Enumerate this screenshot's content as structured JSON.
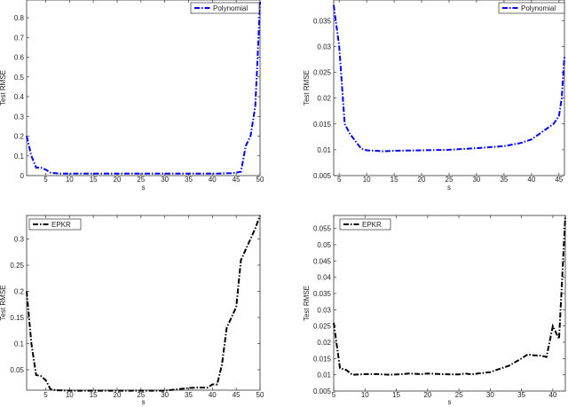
{
  "chart_data": [
    {
      "type": "line",
      "xlabel": "s",
      "ylabel": "Test RMSE",
      "xlim": [
        1,
        50
      ],
      "ylim": [
        0,
        0.89
      ],
      "xticks": [
        5,
        10,
        15,
        20,
        25,
        30,
        35,
        40,
        45,
        50
      ],
      "yticks": [
        0,
        0.1,
        0.2,
        0.3,
        0.4,
        0.5,
        0.6,
        0.7,
        0.8
      ],
      "legend": "top-right",
      "grid": false,
      "series": [
        {
          "name": "Polynomial",
          "color": "#0000ff",
          "x": [
            1,
            2,
            3,
            4,
            5,
            6,
            8,
            10,
            15,
            20,
            25,
            30,
            35,
            40,
            44,
            45,
            46,
            47,
            48,
            49,
            49.5,
            50
          ],
          "y": [
            0.2,
            0.1,
            0.04,
            0.04,
            0.03,
            0.015,
            0.01,
            0.01,
            0.01,
            0.01,
            0.01,
            0.01,
            0.01,
            0.01,
            0.012,
            0.015,
            0.02,
            0.15,
            0.2,
            0.35,
            0.6,
            0.88
          ]
        }
      ]
    },
    {
      "type": "line",
      "xlabel": "s",
      "ylabel": "Test RMSE",
      "xlim": [
        4,
        46
      ],
      "ylim": [
        0.005,
        0.039
      ],
      "xticks": [
        5,
        10,
        15,
        20,
        25,
        30,
        35,
        40,
        45
      ],
      "yticks": [
        0.005,
        0.01,
        0.015,
        0.02,
        0.025,
        0.03,
        0.035
      ],
      "legend": "top-right",
      "grid": false,
      "series": [
        {
          "name": "Polynomial",
          "color": "#0000ff",
          "x": [
            4,
            5,
            6,
            7,
            9,
            10,
            13,
            15,
            20,
            25,
            30,
            35,
            38,
            40,
            42,
            44,
            45,
            45.5,
            46
          ],
          "y": [
            0.038,
            0.03,
            0.015,
            0.013,
            0.0102,
            0.0099,
            0.0097,
            0.0098,
            0.0099,
            0.01,
            0.0103,
            0.0107,
            0.0113,
            0.012,
            0.0135,
            0.015,
            0.0165,
            0.02,
            0.028
          ]
        }
      ]
    },
    {
      "type": "line",
      "xlabel": "s",
      "ylabel": "Test RMSE",
      "xlim": [
        1,
        50
      ],
      "ylim": [
        0.011,
        0.345
      ],
      "xticks": [
        5,
        10,
        15,
        20,
        25,
        30,
        35,
        40,
        45,
        50
      ],
      "yticks": [
        0.05,
        0.1,
        0.15,
        0.2,
        0.25,
        0.3
      ],
      "legend": "top-left",
      "grid": false,
      "series": [
        {
          "name": "EPKR",
          "color": "#000000",
          "x": [
            1,
            2,
            3,
            4,
            5,
            6,
            7,
            10,
            15,
            20,
            25,
            30,
            32,
            35,
            37,
            39,
            40,
            41,
            42,
            43,
            44,
            45,
            46,
            47,
            48,
            49,
            50
          ],
          "y": [
            0.2,
            0.1,
            0.04,
            0.038,
            0.03,
            0.013,
            0.011,
            0.01,
            0.01,
            0.01,
            0.01,
            0.01,
            0.012,
            0.015,
            0.016,
            0.016,
            0.022,
            0.022,
            0.06,
            0.13,
            0.15,
            0.17,
            0.26,
            0.28,
            0.3,
            0.32,
            0.345
          ]
        }
      ]
    },
    {
      "type": "line",
      "xlabel": "s",
      "ylabel": "Test RMSE",
      "xlim": [
        5,
        42
      ],
      "ylim": [
        0.005,
        0.059
      ],
      "xticks": [
        5,
        10,
        15,
        20,
        25,
        30,
        35,
        40
      ],
      "yticks": [
        0.005,
        0.01,
        0.015,
        0.02,
        0.025,
        0.03,
        0.035,
        0.04,
        0.045,
        0.05,
        0.055
      ],
      "legend": "top-left",
      "grid": false,
      "series": [
        {
          "name": "EPKR",
          "color": "#000000",
          "x": [
            5,
            6,
            7,
            8,
            10,
            12,
            14,
            16,
            17,
            19,
            20,
            22,
            24,
            25,
            26,
            27,
            28,
            30,
            31,
            33,
            35,
            36,
            37,
            38,
            39,
            40,
            40.5,
            41,
            41.5,
            42
          ],
          "y": [
            0.026,
            0.012,
            0.0115,
            0.01,
            0.0102,
            0.0102,
            0.01,
            0.0102,
            0.0104,
            0.0102,
            0.0104,
            0.0102,
            0.0101,
            0.0101,
            0.0104,
            0.0101,
            0.0104,
            0.0108,
            0.0115,
            0.0128,
            0.015,
            0.0163,
            0.016,
            0.0159,
            0.0155,
            0.025,
            0.023,
            0.021,
            0.04,
            0.059
          ]
        }
      ]
    }
  ]
}
